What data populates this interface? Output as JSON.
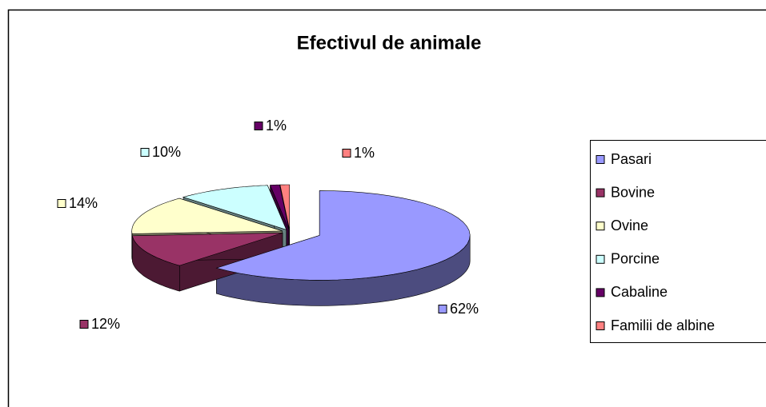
{
  "chart_data": {
    "type": "pie",
    "title": "Efectivul de animale",
    "categories": [
      "Pasari",
      "Bovine",
      "Ovine",
      "Porcine",
      "Cabaline",
      "Familii de albine"
    ],
    "values": [
      62,
      12,
      14,
      10,
      1,
      1
    ],
    "value_labels": [
      "62%",
      "12%",
      "14%",
      "10%",
      "1%",
      "1%"
    ],
    "colors": [
      "#9999ff",
      "#993366",
      "#ffffcc",
      "#ccffff",
      "#660066",
      "#ff8080"
    ],
    "legend": "right"
  }
}
